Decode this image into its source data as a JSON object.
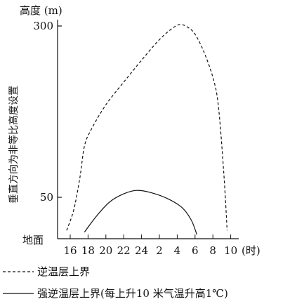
{
  "chart_data": {
    "type": "line",
    "ylabel": "高度 (m)",
    "ylabel_side": "垂直方向为非等比高度设置",
    "y_ground_label": "地面",
    "y_ticks": [
      {
        "value": 300,
        "label": "300"
      },
      {
        "value": 50,
        "label": "50"
      }
    ],
    "x_unit": "(时)",
    "x_ticks": [
      "16",
      "18",
      "20",
      "22",
      "24",
      "2",
      "4",
      "6",
      "8",
      "10"
    ],
    "x_tick_hours": [
      16,
      18,
      20,
      22,
      24,
      26,
      28,
      30,
      32,
      34
    ],
    "series": [
      {
        "name": "逆温层上界",
        "style": "dashed",
        "legend": "逆温层上界",
        "points": [
          [
            15.6,
            10
          ],
          [
            16.4,
            35
          ],
          [
            17.1,
            80
          ],
          [
            17.6,
            125
          ],
          [
            18.4,
            150
          ],
          [
            20,
            185
          ],
          [
            22,
            218
          ],
          [
            24,
            250
          ],
          [
            26,
            280
          ],
          [
            27.6,
            298
          ],
          [
            28.4,
            302
          ],
          [
            29.2,
            298
          ],
          [
            30,
            288
          ],
          [
            31,
            262
          ],
          [
            32,
            225
          ],
          [
            32.6,
            185
          ],
          [
            33.2,
            90
          ],
          [
            33.6,
            10
          ]
        ]
      },
      {
        "name": "强逆温层上界",
        "style": "solid",
        "legend": "强逆温层上界(每上升10 米气温升高1℃)",
        "points": [
          [
            17.6,
            8
          ],
          [
            19,
            28
          ],
          [
            20.5,
            45
          ],
          [
            22,
            55
          ],
          [
            23.4,
            60
          ],
          [
            25,
            57
          ],
          [
            27,
            48
          ],
          [
            28.6,
            37
          ],
          [
            29.6,
            22
          ],
          [
            30.2,
            5
          ]
        ]
      }
    ],
    "colors": {
      "line": "#111111",
      "background": "#ffffff"
    }
  }
}
